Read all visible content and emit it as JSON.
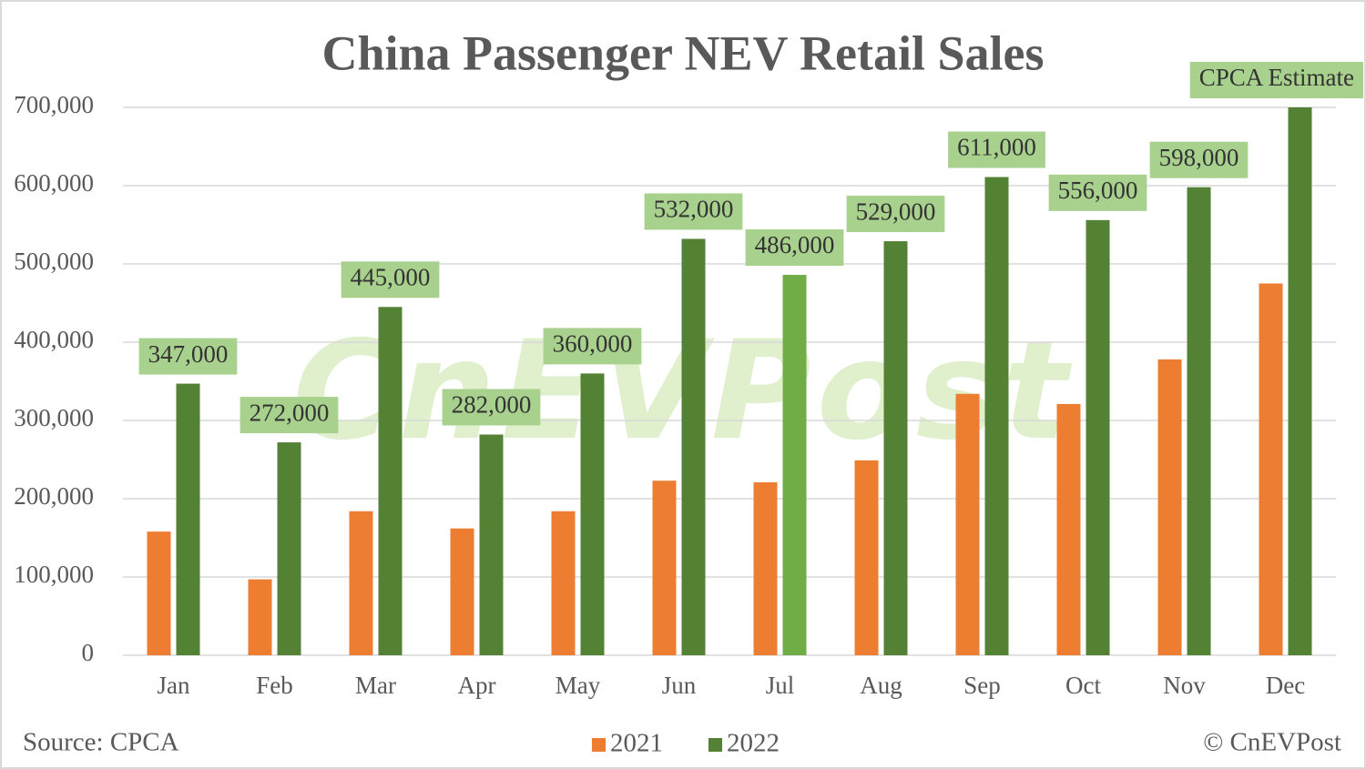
{
  "chart_data": {
    "type": "bar",
    "title": "China Passenger NEV Retail Sales",
    "categories": [
      "Jan",
      "Feb",
      "Mar",
      "Apr",
      "May",
      "Jun",
      "Jul",
      "Aug",
      "Sep",
      "Oct",
      "Nov",
      "Dec"
    ],
    "series": [
      {
        "name": "2021",
        "color": "#ED7D31",
        "values": [
          158000,
          97000,
          184000,
          162000,
          184000,
          223000,
          221000,
          249000,
          334000,
          321000,
          378000,
          475000
        ]
      },
      {
        "name": "2022",
        "color": "#548235",
        "colors": [
          "#548235",
          "#548235",
          "#548235",
          "#548235",
          "#548235",
          "#548235",
          "#70AD47",
          "#548235",
          "#548235",
          "#548235",
          "#548235",
          "#548235"
        ],
        "values": [
          347000,
          272000,
          445000,
          282000,
          360000,
          532000,
          486000,
          529000,
          611000,
          556000,
          598000,
          700000
        ],
        "value_labels": [
          "347,000",
          "272,000",
          "445,000",
          "282,000",
          "360,000",
          "532,000",
          "486,000",
          "529,000",
          "611,000",
          "556,000",
          "598,000",
          null
        ]
      }
    ],
    "annotation": "CPCA Estimate",
    "ylim": [
      0,
      700000
    ],
    "yticks": [
      0,
      {
        "value": 100000,
        "label": "100,000"
      },
      {
        "value": 200000,
        "label": "200,000"
      },
      {
        "value": 300000,
        "label": "300,000"
      },
      {
        "value": 400000,
        "label": "400,000"
      },
      {
        "value": 500000,
        "label": "500,000"
      },
      {
        "value": 600000,
        "label": "600,000"
      },
      {
        "value": 700000,
        "label": "700,000"
      }
    ],
    "grid": true,
    "legend": "bottom",
    "source": "Source: CPCA",
    "credit": "© CnEVPost",
    "watermark": "CnEVPost"
  }
}
